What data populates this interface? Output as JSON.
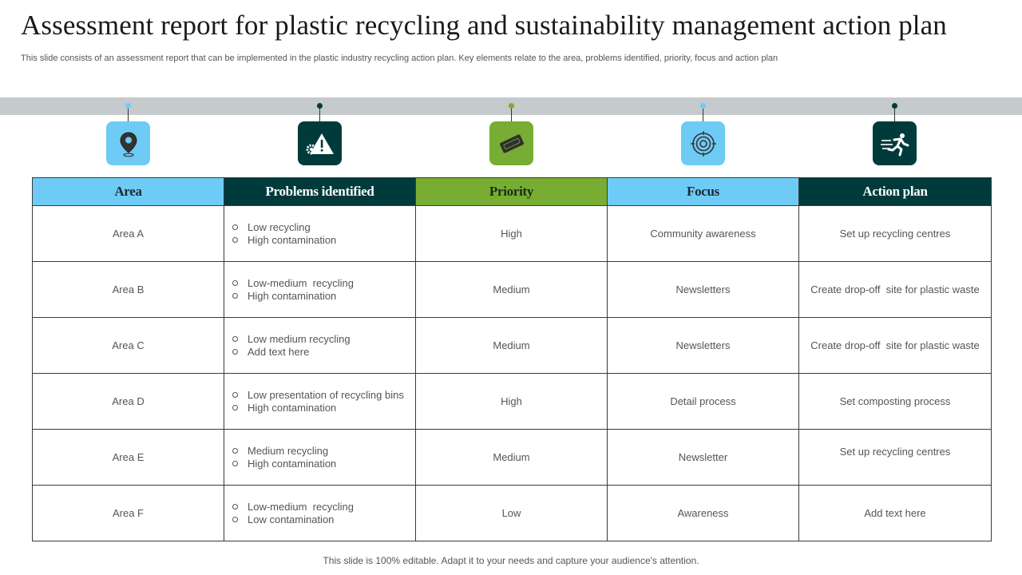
{
  "title": "Assessment report for plastic recycling and sustainability management action plan",
  "subtitle": "This slide consists of an assessment report that can be implemented in the plastic industry recycling action plan. Key elements relate to the area, problems identified, priority, focus and action plan",
  "colors": {
    "light_blue": "#6ecbf5",
    "dark_teal": "#003b3c",
    "green": "#78ad34",
    "band": "#c5cacd"
  },
  "icons": [
    {
      "name": "location-pin-icon",
      "color": "#6ecbf5",
      "dot": "#6ecbf5"
    },
    {
      "name": "warning-gear-icon",
      "color": "#003b3c",
      "dot": "#003b3c"
    },
    {
      "name": "priority-ticket-icon",
      "color": "#78ad34",
      "dot": "#78ad34"
    },
    {
      "name": "target-icon",
      "color": "#6ecbf5",
      "dot": "#6ecbf5"
    },
    {
      "name": "running-person-icon",
      "color": "#003b3c",
      "dot": "#003b3c"
    }
  ],
  "table": {
    "headers": [
      "Area",
      "Problems identified",
      "Priority",
      "Focus",
      "Action plan"
    ],
    "rows": [
      {
        "area": "Area A",
        "problems": [
          "Low recycling",
          "High contamination"
        ],
        "priority": "High",
        "focus": "Community awareness",
        "action": "Set up recycling centres"
      },
      {
        "area": "Area B",
        "problems": [
          "Low-medium  recycling",
          "High contamination"
        ],
        "priority": "Medium",
        "focus": "Newsletters",
        "action": "Create drop-off  site for plastic waste"
      },
      {
        "area": "Area C",
        "problems": [
          "Low medium recycling",
          "Add text here"
        ],
        "priority": "Medium",
        "focus": "Newsletters",
        "action": "Create drop-off  site for plastic waste"
      },
      {
        "area": "Area D",
        "problems": [
          "Low presentation of recycling bins",
          "High contamination"
        ],
        "priority": "High",
        "focus": "Detail process",
        "action": "Set composting process"
      },
      {
        "area": "Area E",
        "problems": [
          "Medium recycling",
          "High contamination"
        ],
        "priority": "Medium",
        "focus": "Newsletter",
        "action": "Set up recycling centres"
      },
      {
        "area": "Area F",
        "problems": [
          "Low-medium  recycling",
          "Low contamination"
        ],
        "priority": "Low",
        "focus": "Awareness",
        "action": "Add text here"
      }
    ]
  },
  "footer": "This slide is 100% editable. Adapt it to your needs and capture your audience's attention."
}
